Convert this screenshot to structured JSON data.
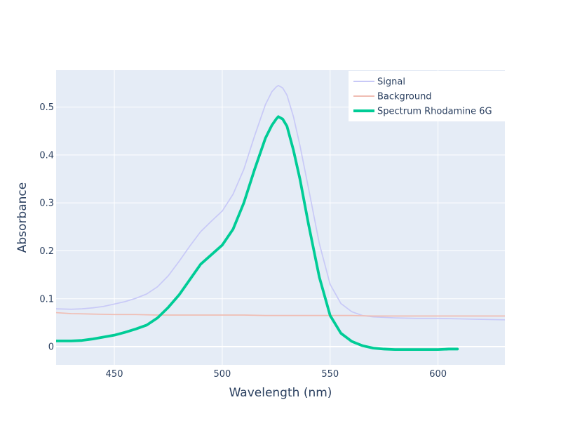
{
  "chart_data": {
    "type": "line",
    "title": "",
    "xlabel": "Wavelength (nm)",
    "ylabel": "Absorbance",
    "xlim": [
      423,
      631
    ],
    "ylim": [
      -0.038,
      0.577
    ],
    "x_ticks": [
      450,
      500,
      550,
      600
    ],
    "x_tick_labels": [
      "450",
      "500",
      "550",
      "600"
    ],
    "y_ticks": [
      0,
      0.1,
      0.2,
      0.3,
      0.4,
      0.5
    ],
    "y_tick_labels": [
      "0",
      "0.1",
      "0.2",
      "0.3",
      "0.4",
      "0.5"
    ],
    "grid": true,
    "legend_position": "top-right",
    "colors": {
      "plot_background": "#e5ecf6",
      "grid": "#ffffff",
      "zero_line": "#ffffff",
      "axis_text": "#2a3f5f"
    },
    "series": [
      {
        "name": "Signal",
        "color": "#c8c9f7",
        "width": 1.7,
        "x": [
          423,
          430,
          435,
          440,
          445,
          450,
          455,
          460,
          465,
          470,
          475,
          480,
          485,
          490,
          495,
          500,
          505,
          510,
          515,
          520,
          523,
          525,
          526,
          528,
          530,
          533,
          536,
          540,
          545,
          550,
          555,
          560,
          565,
          570,
          580,
          590,
          600,
          610,
          620,
          631
        ],
        "y": [
          0.079,
          0.078,
          0.079,
          0.081,
          0.084,
          0.089,
          0.094,
          0.101,
          0.11,
          0.125,
          0.148,
          0.178,
          0.21,
          0.24,
          0.262,
          0.283,
          0.318,
          0.37,
          0.44,
          0.505,
          0.532,
          0.542,
          0.545,
          0.54,
          0.525,
          0.48,
          0.42,
          0.33,
          0.215,
          0.13,
          0.09,
          0.073,
          0.065,
          0.062,
          0.06,
          0.059,
          0.059,
          0.058,
          0.057,
          0.056
        ]
      },
      {
        "name": "Background",
        "color": "#f0bdb3",
        "width": 1.7,
        "x": [
          423,
          430,
          440,
          450,
          460,
          470,
          480,
          490,
          500,
          510,
          520,
          530,
          540,
          550,
          560,
          570,
          580,
          590,
          600,
          610,
          620,
          631
        ],
        "y": [
          0.071,
          0.069,
          0.068,
          0.067,
          0.067,
          0.066,
          0.066,
          0.066,
          0.066,
          0.066,
          0.065,
          0.065,
          0.065,
          0.065,
          0.065,
          0.064,
          0.064,
          0.064,
          0.064,
          0.064,
          0.064,
          0.064
        ]
      },
      {
        "name": "Spectrum Rhodamine 6G",
        "color": "#00cc96",
        "width": 3.8,
        "x": [
          423,
          430,
          435,
          440,
          445,
          450,
          455,
          460,
          465,
          470,
          475,
          480,
          485,
          490,
          495,
          500,
          505,
          510,
          515,
          520,
          523,
          525,
          526,
          528,
          530,
          533,
          536,
          540,
          545,
          550,
          555,
          560,
          565,
          570,
          575,
          580,
          585,
          590,
          595,
          600,
          605,
          609
        ],
        "y": [
          0.012,
          0.012,
          0.013,
          0.016,
          0.02,
          0.024,
          0.03,
          0.037,
          0.045,
          0.06,
          0.082,
          0.108,
          0.14,
          0.172,
          0.192,
          0.212,
          0.245,
          0.3,
          0.37,
          0.435,
          0.462,
          0.475,
          0.48,
          0.475,
          0.46,
          0.41,
          0.35,
          0.255,
          0.145,
          0.065,
          0.028,
          0.011,
          0.002,
          -0.003,
          -0.005,
          -0.006,
          -0.006,
          -0.006,
          -0.006,
          -0.006,
          -0.005,
          -0.005
        ]
      }
    ]
  }
}
